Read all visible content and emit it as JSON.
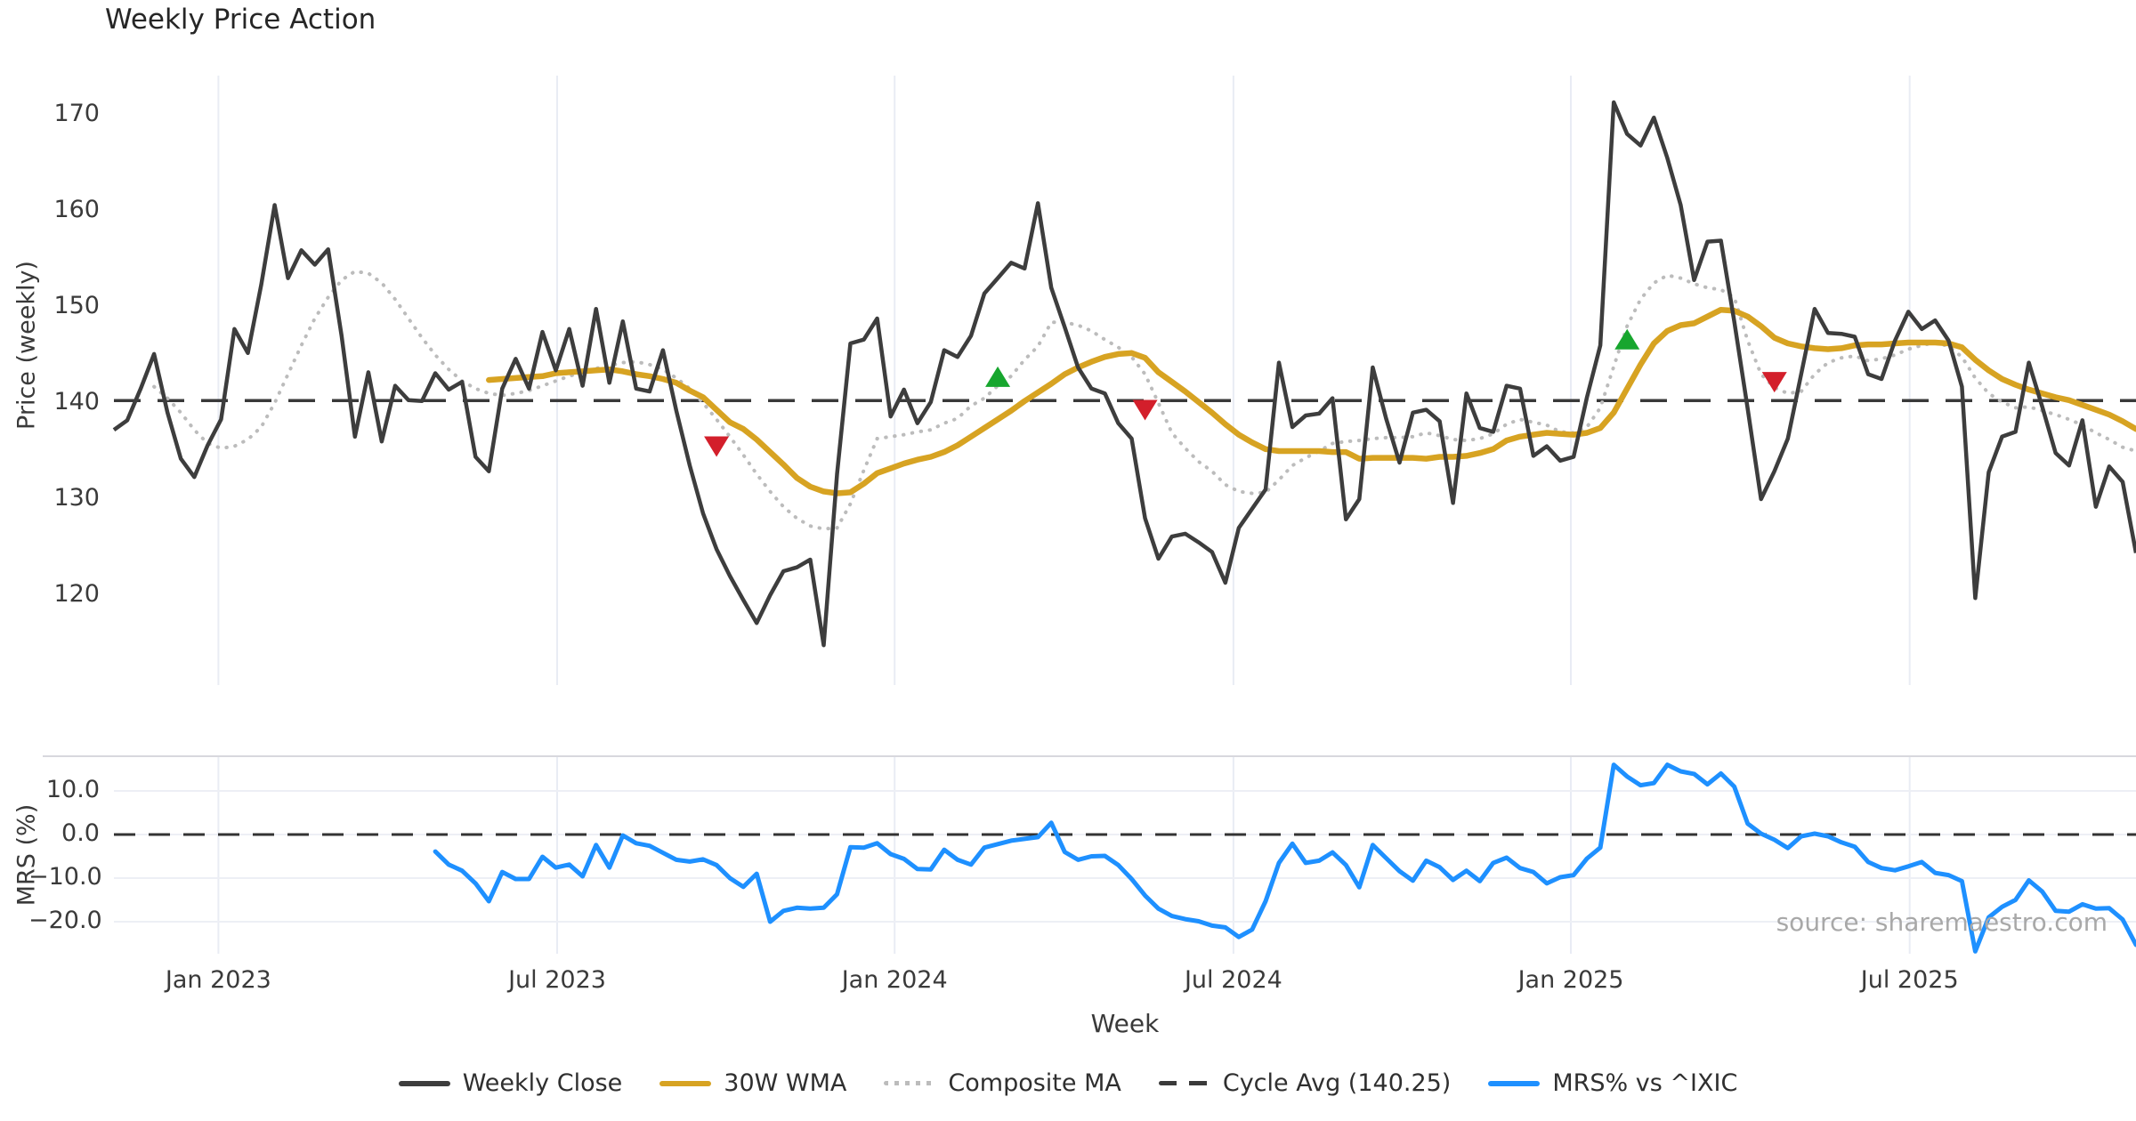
{
  "title": "Weekly Price Action",
  "source_note": "source: sharemaestro.com",
  "colors": {
    "background": "#ffffff",
    "weekly_close": "#3d3d3d",
    "wma_30w": "#d7a322",
    "composite_ma": "#bcbcbc",
    "cycle_avg": "#3a3a3a",
    "mrs_line": "#1E90FF",
    "buy_marker": "#17a62e",
    "sell_marker": "#d31f2b",
    "gridline": "#e9ecf4",
    "axis_text": "#3a3a3a"
  },
  "chart_data": {
    "type": "line",
    "title": "Weekly Price Action",
    "x_label": "Week",
    "frequency": "weekly",
    "n_weeks": 152,
    "x_tick_labels": [
      "Jan 2023",
      "Jul 2023",
      "Jan 2024",
      "Jul 2024",
      "Jan 2025",
      "Jul 2025"
    ],
    "x_tick_week_index": [
      7.8,
      33.1,
      58.3,
      83.6,
      108.8,
      134.1
    ],
    "legend": [
      {
        "label": "Weekly Close",
        "color": "#3d3d3d",
        "style": "solid"
      },
      {
        "label": "30W WMA",
        "color": "#d7a322",
        "style": "solid"
      },
      {
        "label": "Composite MA",
        "color": "#bcbcbc",
        "style": "dotted"
      },
      {
        "label": "Cycle Avg (140.25)",
        "color": "#3a3a3a",
        "style": "dashed"
      },
      {
        "label": "MRS% vs ^IXIC",
        "color": "#1E90FF",
        "style": "solid"
      }
    ],
    "panels": [
      {
        "name": "price",
        "y_label": "Price (weekly)",
        "y_ticks": [
          170,
          160,
          150,
          140,
          130,
          120
        ],
        "y_tick_labels": [
          "170",
          "160",
          "150",
          "140",
          "130",
          "120"
        ],
        "ylim": [
          110.5,
          174.5
        ],
        "cycle_avg_value": 140.25,
        "series": [
          {
            "name": "Weekly Close",
            "color": "#3d3d3d",
            "style": "solid",
            "width": 4.5,
            "values": [
              137.2,
              138.2,
              141.5,
              145.1,
              139.0,
              134.2,
              132.3,
              135.6,
              138.3,
              147.7,
              145.2,
              152.3,
              160.6,
              153.0,
              155.9,
              154.4,
              156.0,
              147.0,
              136.5,
              143.2,
              136.0,
              141.8,
              140.3,
              140.2,
              143.1,
              141.4,
              142.2,
              134.4,
              132.9,
              141.5,
              144.6,
              141.5,
              147.4,
              143.4,
              147.7,
              141.8,
              149.8,
              142.1,
              148.5,
              141.5,
              141.2,
              145.5,
              139.2,
              133.5,
              128.5,
              124.8,
              122.0,
              119.5,
              117.1,
              120.0,
              122.5,
              122.9,
              123.7,
              114.8,
              132.6,
              146.2,
              146.6,
              148.8,
              138.6,
              141.4,
              137.9,
              140.1,
              145.5,
              144.8,
              147.0,
              151.4,
              153.0,
              154.6,
              154.0,
              160.8,
              152.0,
              147.9,
              143.7,
              141.5,
              141.0,
              137.9,
              136.3,
              128.0,
              123.8,
              126.1,
              126.4,
              125.5,
              124.5,
              121.3,
              127.0,
              129.0,
              131.0,
              144.2,
              137.5,
              138.7,
              138.9,
              140.5,
              127.9,
              130.0,
              143.7,
              138.4,
              133.8,
              139.0,
              139.3,
              138.1,
              129.6,
              141.0,
              137.4,
              137.0,
              141.8,
              141.5,
              134.5,
              135.5,
              134.0,
              134.4,
              140.6,
              146.0,
              171.3,
              168.0,
              166.8,
              169.7,
              165.5,
              160.6,
              152.8,
              156.8,
              156.9,
              148.5,
              139.4,
              130.0,
              132.9,
              136.3,
              143.0,
              149.8,
              147.3,
              147.2,
              146.9,
              143.0,
              142.5,
              146.5,
              149.5,
              147.7,
              148.6,
              146.5,
              141.7,
              119.7,
              132.8,
              136.5,
              137.0,
              144.2,
              139.6,
              134.8,
              133.5,
              138.2,
              129.2,
              133.4,
              131.8,
              124.4
            ]
          },
          {
            "name": "30W WMA",
            "color": "#d7a322",
            "style": "solid",
            "width": 6.5,
            "values": [
              null,
              null,
              null,
              null,
              null,
              null,
              null,
              null,
              null,
              null,
              null,
              null,
              null,
              null,
              null,
              null,
              null,
              null,
              null,
              null,
              null,
              null,
              null,
              null,
              null,
              null,
              null,
              null,
              142.4,
              142.5,
              142.6,
              142.7,
              142.8,
              143.1,
              143.2,
              143.3,
              143.4,
              143.5,
              143.3,
              143.0,
              142.8,
              142.5,
              142.1,
              141.3,
              140.6,
              139.3,
              138.0,
              137.3,
              136.2,
              134.9,
              133.6,
              132.2,
              131.3,
              130.8,
              130.6,
              130.7,
              131.6,
              132.7,
              133.2,
              133.7,
              134.1,
              134.4,
              134.9,
              135.6,
              136.5,
              137.4,
              138.3,
              139.2,
              140.2,
              141.1,
              142.0,
              143.0,
              143.7,
              144.3,
              144.8,
              145.1,
              145.2,
              144.7,
              143.2,
              142.2,
              141.2,
              140.1,
              139.0,
              137.8,
              136.7,
              135.9,
              135.2,
              135.0,
              135.0,
              135.0,
              135.0,
              134.9,
              134.9,
              134.2,
              134.3,
              134.3,
              134.3,
              134.3,
              134.2,
              134.4,
              134.4,
              134.5,
              134.8,
              135.2,
              136.1,
              136.5,
              136.7,
              136.9,
              136.8,
              136.7,
              136.9,
              137.4,
              139.0,
              141.5,
              144.0,
              146.2,
              147.5,
              148.1,
              148.3,
              149.0,
              149.7,
              149.6,
              149.0,
              148.0,
              146.8,
              146.2,
              145.9,
              145.7,
              145.6,
              145.7,
              146.0,
              146.1,
              146.1,
              146.2,
              146.3,
              146.3,
              146.3,
              146.2,
              145.8,
              144.5,
              143.4,
              142.5,
              141.9,
              141.4,
              141.0,
              140.6,
              140.3,
              139.8,
              139.3,
              138.8,
              138.1,
              137.3
            ]
          },
          {
            "name": "Composite MA",
            "color": "#bcbcbc",
            "style": "dotted",
            "width": 4,
            "values": [
              null,
              null,
              null,
              141.7,
              140.5,
              139.0,
              137.2,
              135.8,
              135.3,
              135.5,
              136.2,
              137.5,
              140.0,
              143.0,
              146.0,
              148.8,
              151.0,
              152.8,
              153.7,
              153.5,
              152.5,
              150.8,
              148.8,
              146.8,
              145.0,
              143.5,
              142.3,
              141.5,
              141.0,
              140.8,
              141.0,
              141.3,
              141.8,
              142.3,
              142.8,
              143.2,
              143.6,
              143.9,
              144.2,
              144.3,
              144.0,
              143.5,
              142.6,
              141.5,
              140.0,
              138.3,
              136.5,
              134.6,
              132.6,
              130.8,
              129.2,
              128.0,
              127.2,
              126.9,
              127.0,
              129.5,
              133.0,
              136.3,
              136.5,
              136.7,
              137.0,
              137.2,
              137.9,
              138.4,
              139.7,
              140.5,
              141.8,
              142.8,
              144.5,
              145.9,
              148.4,
              148.4,
              148.1,
              147.5,
              146.6,
              145.8,
              144.8,
              143.0,
              140.0,
              136.9,
              135.3,
              133.9,
              132.9,
              131.5,
              130.8,
              130.6,
              130.7,
              132.0,
              133.5,
              134.3,
              135.0,
              135.8,
              136.0,
              136.1,
              136.3,
              136.4,
              136.4,
              136.5,
              136.9,
              136.6,
              136.2,
              136.1,
              136.3,
              136.8,
              137.8,
              138.3,
              138.0,
              137.7,
              137.0,
              136.9,
              137.5,
              139.5,
              143.8,
              148.0,
              150.8,
              152.5,
              153.3,
              153.0,
              152.4,
              152.0,
              151.8,
              151.0,
              146.5,
              143.0,
              141.6,
              141.0,
              141.2,
              143.0,
              144.2,
              144.7,
              144.9,
              144.4,
              144.6,
              145.0,
              145.6,
              146.0,
              146.3,
              145.9,
              144.8,
              142.6,
              141.0,
              140.1,
              139.5,
              139.6,
              139.2,
              138.8,
              138.3,
              137.7,
              136.9,
              136.2,
              135.4,
              135.0
            ]
          },
          {
            "name": "Cycle Avg (140.25)",
            "color": "#3a3a3a",
            "style": "dashed",
            "width": 3.5,
            "constant": 140.25
          }
        ],
        "markers": [
          {
            "signal": "sell",
            "shape": "triangle-down",
            "color": "#d31f2b",
            "week_index": 45,
            "value": 135.6
          },
          {
            "signal": "buy",
            "shape": "triangle-up",
            "color": "#17a62e",
            "week_index": 66,
            "value": 142.6
          },
          {
            "signal": "sell",
            "shape": "triangle-down",
            "color": "#d31f2b",
            "week_index": 77,
            "value": 139.4
          },
          {
            "signal": "buy",
            "shape": "triangle-up",
            "color": "#17a62e",
            "week_index": 113,
            "value": 146.5
          },
          {
            "signal": "sell",
            "shape": "triangle-down",
            "color": "#d31f2b",
            "week_index": 124,
            "value": 142.3
          }
        ]
      },
      {
        "name": "mrs",
        "y_label": "MRS (%)",
        "y_ticks": [
          10,
          0,
          -10,
          -20
        ],
        "y_tick_labels": [
          "10.0",
          "0.0",
          "−10.0",
          "−20.0"
        ],
        "ylim": [
          -27.5,
          18
        ],
        "zero_line_dashed": true,
        "series": [
          {
            "name": "MRS% vs ^IXIC",
            "color": "#1E90FF",
            "style": "solid",
            "width": 5,
            "values": [
              null,
              null,
              null,
              null,
              null,
              null,
              null,
              null,
              null,
              null,
              null,
              null,
              null,
              null,
              null,
              null,
              null,
              null,
              null,
              null,
              null,
              null,
              null,
              null,
              -3.9,
              -6.9,
              -8.3,
              -11.2,
              -15.3,
              -8.6,
              -10.2,
              -10.2,
              -5.1,
              -7.6,
              -6.9,
              -9.6,
              -2.4,
              -7.6,
              -0.2,
              -2.0,
              -2.6,
              -4.2,
              -5.8,
              -6.2,
              -5.7,
              -7.0,
              -10.0,
              -12.0,
              -9.0,
              -20.0,
              -17.5,
              -16.8,
              -17.0,
              -16.8,
              -13.7,
              -2.9,
              -3.0,
              -2.0,
              -4.5,
              -5.6,
              -7.9,
              -8.0,
              -3.5,
              -5.8,
              -6.9,
              -3.0,
              -2.2,
              -1.4,
              -1.0,
              -0.6,
              2.7,
              -4.0,
              -5.8,
              -5.0,
              -4.9,
              -7.0,
              -10.2,
              -14.0,
              -17.0,
              -18.7,
              -19.4,
              -19.9,
              -20.9,
              -21.3,
              -23.5,
              -21.8,
              -15.3,
              -6.5,
              -2.1,
              -6.5,
              -6.0,
              -4.1,
              -7.0,
              -12.1,
              -2.4,
              -5.4,
              -8.4,
              -10.6,
              -6.0,
              -7.5,
              -10.4,
              -8.3,
              -10.7,
              -6.5,
              -5.3,
              -7.7,
              -8.6,
              -11.2,
              -9.8,
              -9.3,
              -5.5,
              -3.0,
              16.0,
              13.3,
              11.3,
              11.8,
              16.0,
              14.5,
              13.9,
              11.5,
              14.0,
              11.0,
              2.5,
              0.2,
              -1.2,
              -3.1,
              -0.4,
              0.2,
              -0.4,
              -1.8,
              -2.8,
              -6.3,
              -7.7,
              -8.2,
              -7.3,
              -6.3,
              -8.8,
              -9.3,
              -10.7,
              -26.8,
              -19.0,
              -16.6,
              -15.0,
              -10.5,
              -13.1,
              -17.5,
              -17.7,
              -16.0,
              -17.0,
              -16.9,
              -19.5,
              -25.3
            ]
          }
        ]
      }
    ]
  }
}
